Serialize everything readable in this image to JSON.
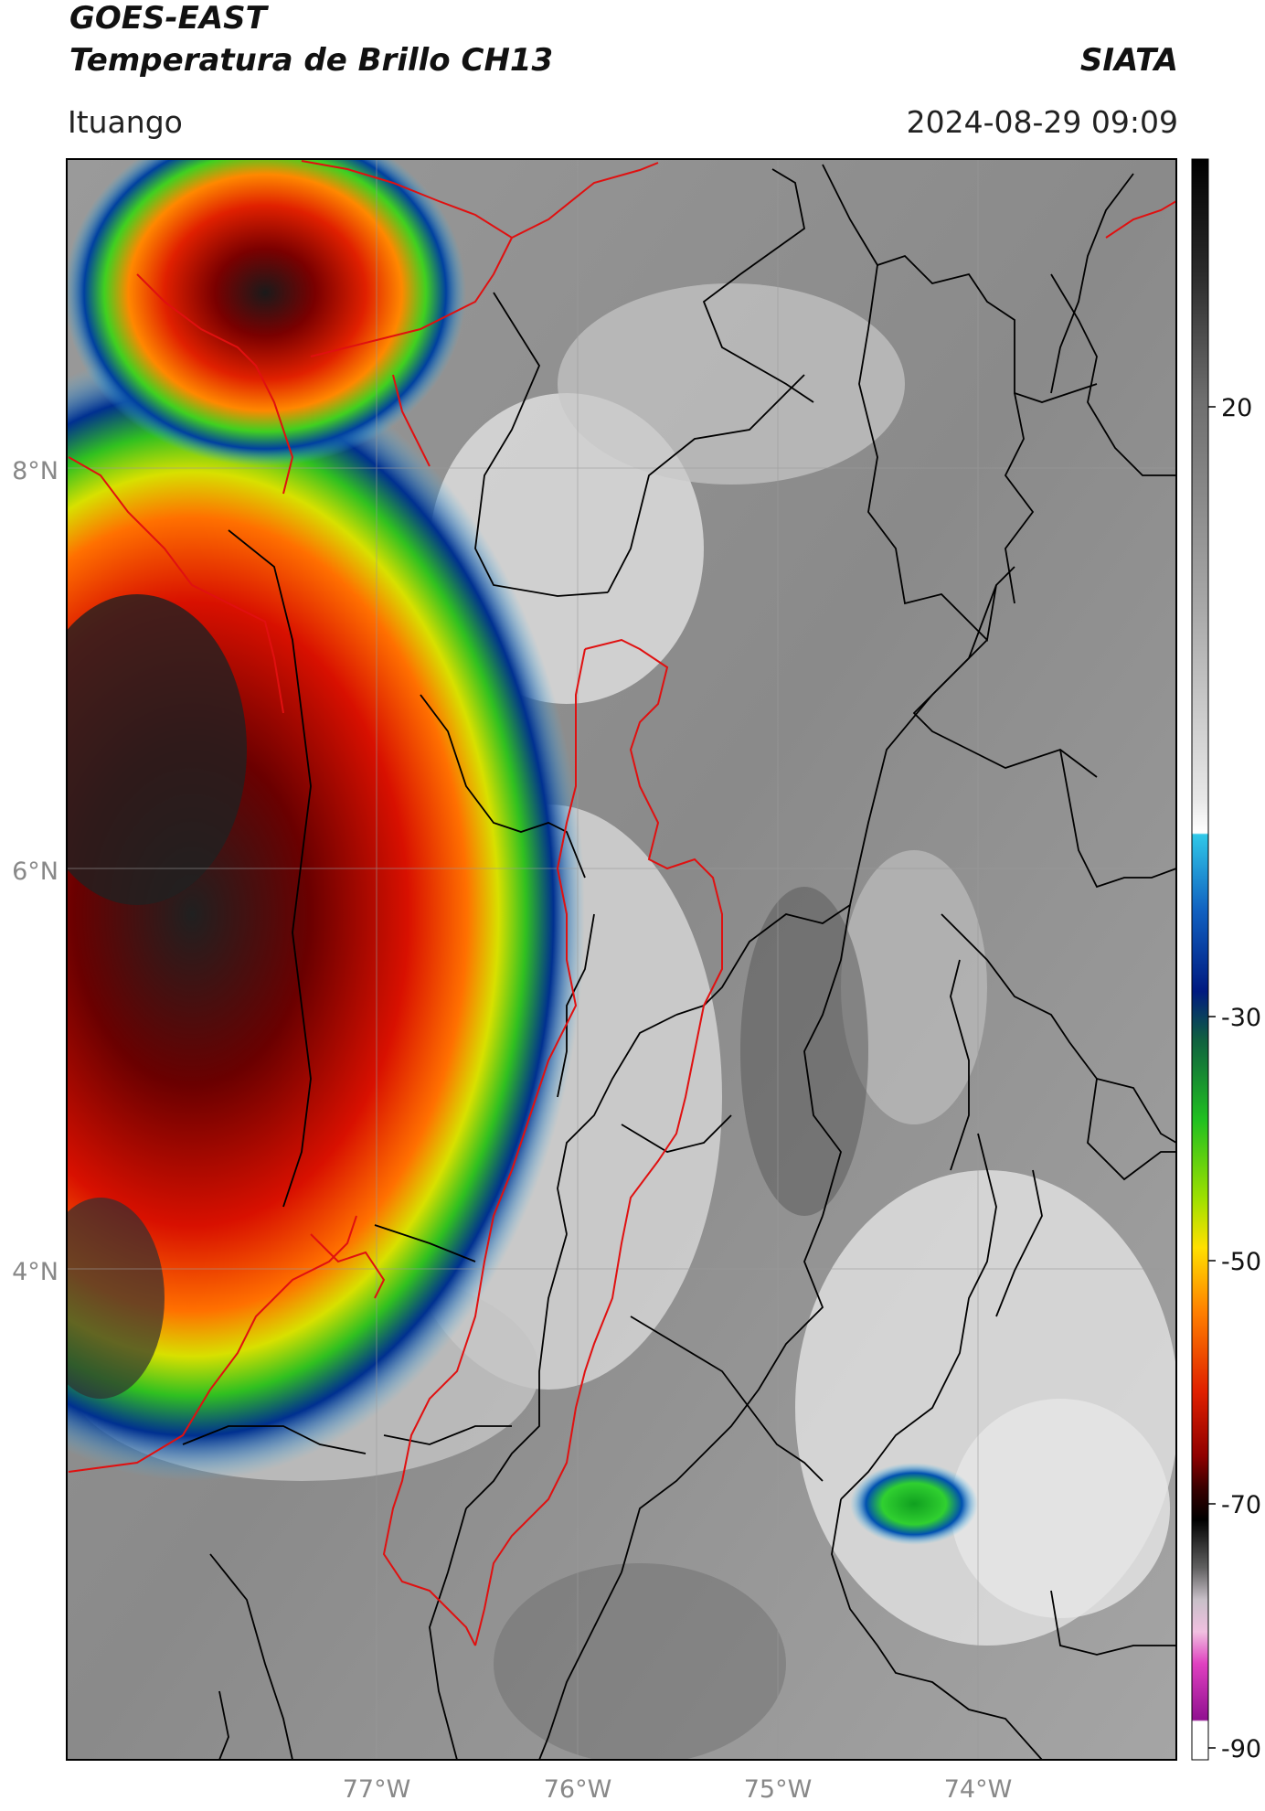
{
  "header": {
    "satellite": "GOES-EAST",
    "product": "Temperatura de Brillo CH13",
    "agency": "SIATA",
    "location": "Ituango",
    "datetime": "2024-08-29 09:09"
  },
  "map": {
    "lat_labels": [
      "8°N",
      "6°N",
      "4°N"
    ],
    "lon_labels": [
      "77°W",
      "76°W",
      "75°W",
      "74°W"
    ],
    "colorbar_ticks": [
      "20",
      "-30",
      "-50",
      "-70",
      "-90"
    ]
  }
}
